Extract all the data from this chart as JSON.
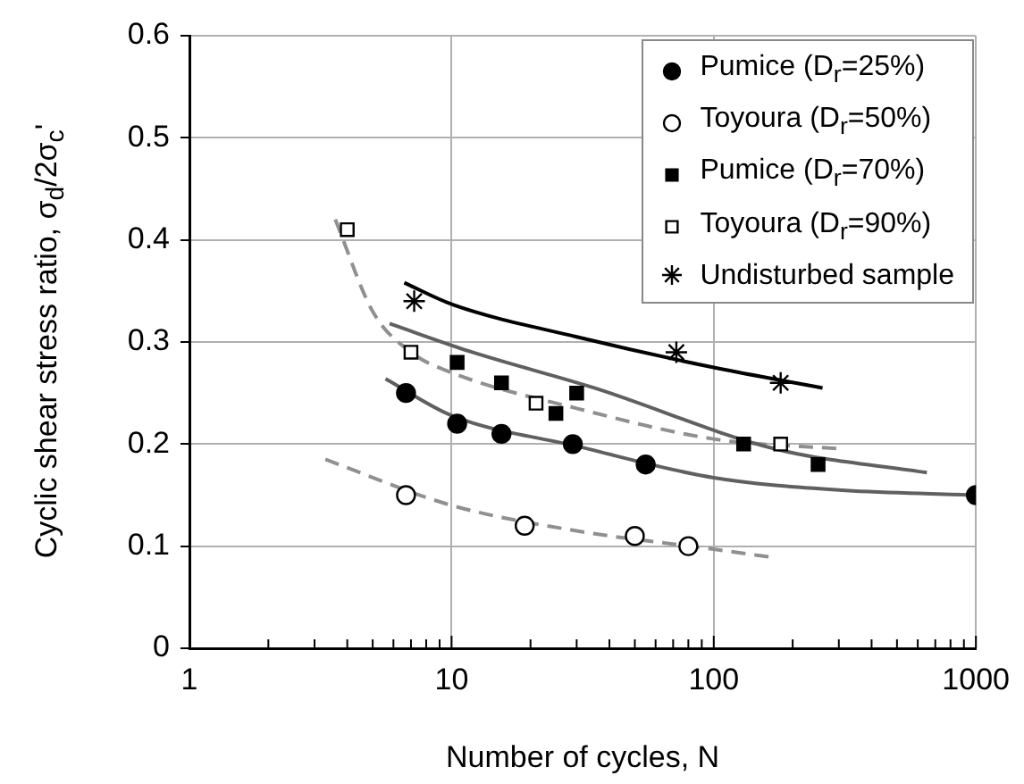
{
  "chart_data": {
    "type": "scatter",
    "xlabel": "Number of cycles, N",
    "ylabel": "Cyclic shear stress ratio, σ$_{d}$/2σ$_{c}$'",
    "log": "x",
    "xlim": [
      1,
      1000
    ],
    "ylim": [
      0,
      0.6
    ],
    "xticks": [
      1,
      {
        "value": 2,
        "label": null
      },
      {
        "value": 3,
        "label": null
      },
      {
        "value": 4,
        "label": null
      },
      {
        "value": 5,
        "label": null
      },
      {
        "value": 6,
        "label": null
      },
      {
        "value": 7,
        "label": null
      },
      {
        "value": 8,
        "label": null
      },
      {
        "value": 9,
        "label": null
      },
      10,
      {
        "value": 20,
        "label": null
      },
      {
        "value": 30,
        "label": null
      },
      {
        "value": 40,
        "label": null
      },
      {
        "value": 50,
        "label": null
      },
      {
        "value": 60,
        "label": null
      },
      {
        "value": 70,
        "label": null
      },
      {
        "value": 80,
        "label": null
      },
      {
        "value": 90,
        "label": null
      },
      100,
      {
        "value": 200,
        "label": null
      },
      {
        "value": 300,
        "label": null
      },
      {
        "value": 400,
        "label": null
      },
      {
        "value": 500,
        "label": null
      },
      {
        "value": 600,
        "label": null
      },
      {
        "value": 700,
        "label": null
      },
      {
        "value": 800,
        "label": null
      },
      {
        "value": 900,
        "label": null
      },
      1000
    ],
    "yticks": [
      0,
      0.1,
      0.2,
      0.3,
      0.4,
      0.5,
      0.6
    ],
    "grid": true,
    "legend": "top right",
    "series": [
      {
        "name": "Pumice (D$_{r}$=25%)",
        "color": "#000000",
        "marker": "circle",
        "x": [
          6.7,
          10.5,
          15.5,
          29,
          55,
          1000
        ],
        "values": [
          0.25,
          0.22,
          0.21,
          0.2,
          0.18,
          0.15
        ]
      },
      {
        "name": "Toyoura (D$_{r}$=50%)",
        "color": "#ffffff",
        "marker": "circle",
        "x": [
          6.7,
          19,
          50,
          80
        ],
        "values": [
          0.15,
          0.12,
          0.11,
          0.1
        ]
      },
      {
        "name": "Pumice (D$_{r}$=70%)",
        "color": "#000000",
        "marker": "square",
        "x": [
          10.5,
          15.5,
          30,
          25,
          130,
          250
        ],
        "values": [
          0.28,
          0.26,
          0.25,
          0.23,
          0.2,
          0.18
        ]
      },
      {
        "name": "Toyoura (D$_{r}$=90%)",
        "color": "#ffffff",
        "marker": "square",
        "x": [
          4,
          7,
          21,
          180
        ],
        "values": [
          0.41,
          0.29,
          0.24,
          0.2
        ]
      },
      {
        "name": "Undisturbed sample",
        "color": "#000000",
        "marker": "cross",
        "x": [
          7.2,
          72,
          180
        ],
        "values": [
          0.34,
          0.29,
          0.26
        ]
      },
      {
        "type": "line",
        "color": "#606060",
        "marker": "none",
        "line_style": "solid",
        "x": [
          5.6,
          10,
          30,
          100,
          300,
          1000
        ],
        "values": [
          0.264,
          0.228,
          0.198,
          0.167,
          0.155,
          0.15
        ]
      },
      {
        "type": "line",
        "color": "#909090",
        "marker": "none",
        "line_style": "dashed",
        "x": [
          3.3,
          10,
          30,
          100,
          168
        ],
        "values": [
          0.185,
          0.14,
          0.115,
          0.097,
          0.089
        ]
      },
      {
        "type": "line",
        "color": "#606060",
        "marker": "none",
        "line_style": "solid",
        "x": [
          5.8,
          12,
          35,
          173,
          650
        ],
        "values": [
          0.318,
          0.29,
          0.255,
          0.195,
          0.172
        ]
      },
      {
        "type": "line",
        "color": "#909090",
        "marker": "none",
        "line_style": "dashed",
        "x": [
          3.6,
          5,
          7,
          10,
          30,
          100,
          316
        ],
        "values": [
          0.42,
          0.33,
          0.29,
          0.27,
          0.235,
          0.205,
          0.195
        ]
      },
      {
        "type": "line",
        "color": "#000000",
        "marker": "none",
        "line_style": "solid",
        "x": [
          6.6,
          10,
          30,
          100,
          260
        ],
        "values": [
          0.358,
          0.337,
          0.305,
          0.275,
          0.255
        ]
      }
    ]
  }
}
